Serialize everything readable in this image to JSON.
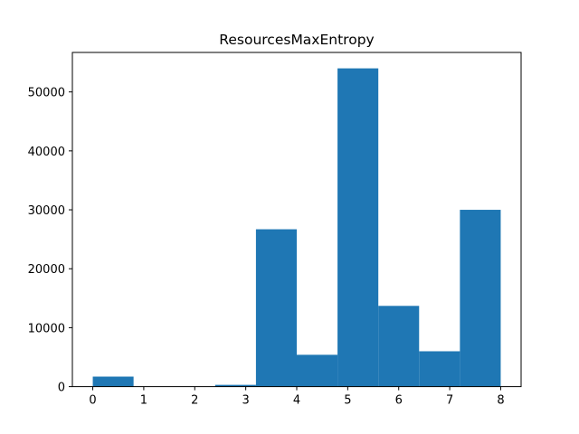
{
  "chart_data": {
    "type": "bar",
    "title": "ResourcesMaxEntropy",
    "xlabel": "",
    "ylabel": "",
    "bin_edges": [
      0,
      0.8,
      1.6,
      2.4,
      3.2,
      4.0,
      4.8,
      5.6,
      6.4,
      7.2,
      8.0
    ],
    "values": [
      1700,
      0,
      0,
      300,
      26700,
      5400,
      54000,
      13700,
      6000,
      30000
    ],
    "xlim": [
      -0.4,
      8.4
    ],
    "ylim": [
      0,
      56700
    ],
    "x_ticks": [
      0,
      1,
      2,
      3,
      4,
      5,
      6,
      7,
      8
    ],
    "x_tick_labels": [
      "0",
      "1",
      "2",
      "3",
      "4",
      "5",
      "6",
      "7",
      "8"
    ],
    "y_ticks": [
      0,
      10000,
      20000,
      30000,
      40000,
      50000
    ],
    "y_tick_labels": [
      "0",
      "10000",
      "20000",
      "30000",
      "40000",
      "50000"
    ],
    "bar_color": "#1f77b4",
    "grid": false,
    "legend": "none"
  }
}
